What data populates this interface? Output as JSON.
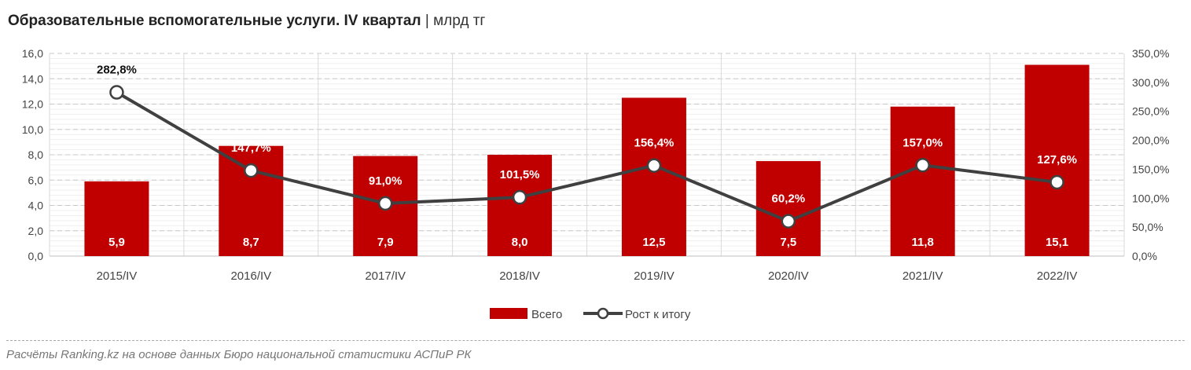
{
  "title": {
    "main": "Образовательные вспомогательные услуги. IV квартал",
    "separator": "|",
    "unit": "млрд тг"
  },
  "footer": "Расчёты Ranking.kz на основе данных Бюро национальной статистики АСПиР РК",
  "chart_data": {
    "type": "bar+line",
    "categories": [
      "2015/IV",
      "2016/IV",
      "2017/IV",
      "2018/IV",
      "2019/IV",
      "2020/IV",
      "2021/IV",
      "2022/IV"
    ],
    "series": [
      {
        "name": "Всего",
        "type": "bar",
        "axis": "left",
        "color": "#C00000",
        "values": [
          5.9,
          8.7,
          7.9,
          8.0,
          12.5,
          7.5,
          11.8,
          15.1
        ],
        "labels": [
          "5,9",
          "8,7",
          "7,9",
          "8,0",
          "12,5",
          "7,5",
          "11,8",
          "15,1"
        ]
      },
      {
        "name": "Рост к итогу",
        "type": "line",
        "axis": "right",
        "color": "#404040",
        "values": [
          282.8,
          147.7,
          91.0,
          101.5,
          156.4,
          60.2,
          157.0,
          127.6
        ],
        "labels": [
          "282,8%",
          "147,7%",
          "91,0%",
          "101,5%",
          "156,4%",
          "60,2%",
          "157,0%",
          "127,6%"
        ]
      }
    ],
    "left_axis": {
      "range": [
        0,
        16
      ],
      "ticks": [
        "0,0",
        "2,0",
        "4,0",
        "6,0",
        "8,0",
        "10,0",
        "12,0",
        "14,0",
        "16,0"
      ]
    },
    "right_axis": {
      "range": [
        0,
        350
      ],
      "ticks": [
        "0,0%",
        "50,0%",
        "100,0%",
        "150,0%",
        "200,0%",
        "250,0%",
        "300,0%",
        "350,0%"
      ]
    },
    "grid": true,
    "legend_position": "bottom"
  }
}
